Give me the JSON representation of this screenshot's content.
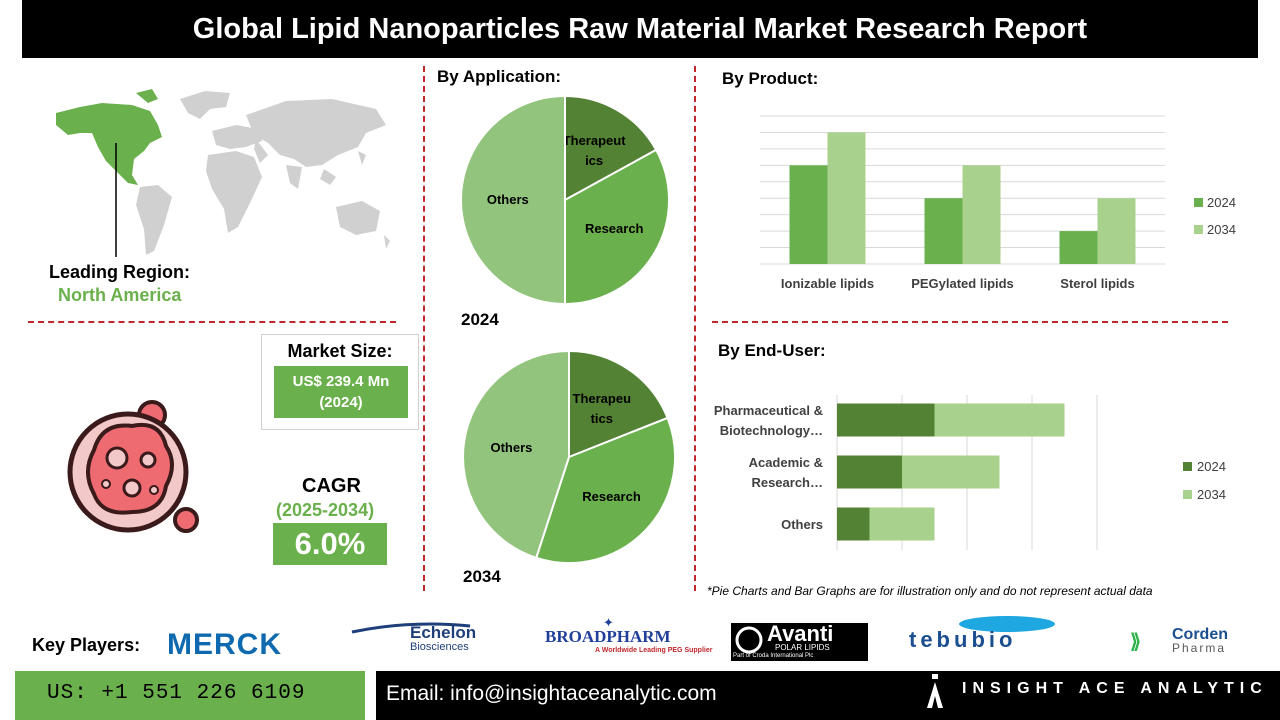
{
  "title": "Global Lipid Nanoparticles Raw Material  Market Research Report",
  "leading_region": {
    "label": "Leading Region:",
    "value": "North America"
  },
  "market_size": {
    "label": "Market Size:",
    "value_line1": "US$ 239.4 Mn",
    "value_line2": "(2024)"
  },
  "cagr": {
    "label": "CAGR",
    "period": "(2025-2034)",
    "value": "6.0%"
  },
  "application": {
    "title": "By Application:",
    "year_2024": "2024",
    "year_2034": "2034"
  },
  "product": {
    "title": "By  Product:"
  },
  "end_user": {
    "title": "By End-User:"
  },
  "disclaimer": "*Pie Charts and Bar Graphs are for illustration only and do not represent actual data",
  "key_players": {
    "label": "Key Players:",
    "logos": [
      "MERCK",
      "Echelon",
      "Biosciences",
      "BROADPHARM",
      "A Worldwide Leading PEG Supplier",
      "Avanti",
      "POLAR LIPIDS",
      "Part of Croda International Plc",
      "tebubio",
      "Corden",
      "Pharma"
    ]
  },
  "contact": {
    "phone": "US: +1 551 226 6109",
    "email": "Email: info@insightaceanalytic.com"
  },
  "brand": {
    "name": "INSIGHT ACE ANALYTIC"
  },
  "colors": {
    "dark_green": "#548235",
    "mid_green": "#6ab04c",
    "light_green": "#a9d18e",
    "pie_light": "#93c47d",
    "divider_red": "#c0272d"
  },
  "chart_data": [
    {
      "type": "pie",
      "title": "By Application:",
      "year": "2024",
      "labels": [
        "Therapeutics",
        "Research",
        "Others"
      ],
      "display_labels": [
        [
          "Therapeut",
          "ics"
        ],
        [
          "Research"
        ],
        [
          "Others"
        ]
      ],
      "values": [
        17,
        33,
        50
      ],
      "colors": [
        "#548235",
        "#6ab04c",
        "#93c47d"
      ]
    },
    {
      "type": "pie",
      "title": "By Application:",
      "year": "2034",
      "labels": [
        "Therapeutics",
        "Research",
        "Others"
      ],
      "display_labels": [
        [
          "Therapeu",
          "tics"
        ],
        [
          "Research"
        ],
        [
          "Others"
        ]
      ],
      "values": [
        19,
        36,
        45
      ],
      "colors": [
        "#548235",
        "#6ab04c",
        "#93c47d"
      ]
    },
    {
      "type": "bar",
      "title": "By  Product:",
      "categories": [
        "Ionizable lipids",
        "PEGylated lipids",
        "Sterol lipids"
      ],
      "series": [
        {
          "name": "2024",
          "values": [
            6,
            4,
            2
          ],
          "color": "#6ab04c"
        },
        {
          "name": "2034",
          "values": [
            8,
            6,
            4
          ],
          "color": "#a9d18e"
        }
      ],
      "ylim": [
        0,
        9
      ],
      "grid": true,
      "legend": "right"
    },
    {
      "type": "bar",
      "orientation": "horizontal-stacked",
      "title": "By End-User:",
      "categories": [
        "Pharmaceutical & Biotechnology…",
        "Academic & Research…",
        "Others"
      ],
      "display_categories": [
        [
          "Pharmaceutical &",
          "Biotechnology…"
        ],
        [
          "Academic &",
          "Research…"
        ],
        [
          "Others"
        ]
      ],
      "series": [
        {
          "name": "2024",
          "values": [
            3,
            2,
            1
          ],
          "color": "#548235"
        },
        {
          "name": "2034",
          "values": [
            4,
            3,
            2
          ],
          "color": "#a9d18e"
        }
      ],
      "xlim": [
        0,
        9
      ],
      "grid": true,
      "legend": "right"
    }
  ]
}
